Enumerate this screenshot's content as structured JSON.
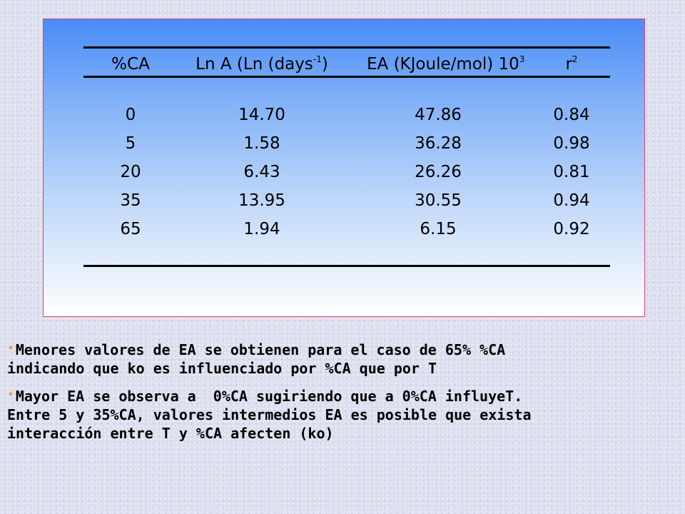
{
  "table": {
    "headers": {
      "ca": "%CA",
      "lna_main": "Ln A (Ln (days",
      "lna_sup": "-1",
      "lna_close": ")",
      "ea_main": "EA (KJoule/mol) 10",
      "ea_sup": "3",
      "r2_main": "r",
      "r2_sup": "2"
    },
    "rows": [
      {
        "ca": "0",
        "lna": "14.70",
        "ea": "47.86",
        "r2": "0.84"
      },
      {
        "ca": "5",
        "lna": "1.58",
        "ea": "36.28",
        "r2": "0.98"
      },
      {
        "ca": "20",
        "lna": "6.43",
        "ea": "26.26",
        "r2": "0.81"
      },
      {
        "ca": "35",
        "lna": "13.95",
        "ea": "30.55",
        "r2": "0.94"
      },
      {
        "ca": "65",
        "lna": "1.94",
        "ea": "6.15",
        "r2": "0.92"
      }
    ]
  },
  "bullets": [
    {
      "bullet": "•",
      "text": "Menores valores de EA se obtienen para el caso de 65% %CA\nindicando que ko es influenciado por %CA que por T"
    },
    {
      "bullet": "•",
      "text": "Mayor EA se observa a  0%CA sugiriendo que a 0%CA influyeT.\nEntre 5 y 35%CA, valores intermedios EA es posible que exista\ninteracción entre T y %CA afecten (ko)"
    }
  ],
  "colors": {
    "panel_border": "#e0407a",
    "panel_top": "#4a8cf6",
    "bullet": "#ff9933",
    "page_background": "#dde0ee"
  }
}
